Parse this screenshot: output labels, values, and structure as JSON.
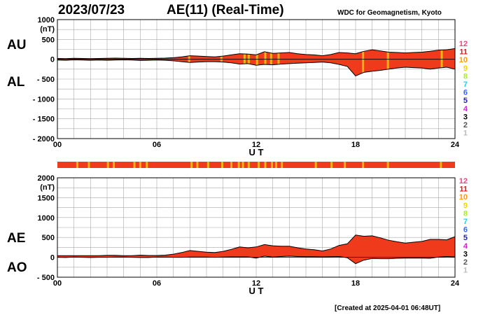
{
  "header": {
    "date": "2023/07/23",
    "title": "AE(11) (Real-Time)",
    "source": "WDC for Geomagnetism, Kyoto"
  },
  "footer": {
    "created": "[Created at 2025-04-01 06:48UT]"
  },
  "colors": {
    "fill": "#f03a1c",
    "quiet": "#f03a1c",
    "gap": "#f2b315",
    "grid": "#a8a8a8",
    "line": "#000000"
  },
  "levels": [
    {
      "label": "12",
      "color": "#ff3d7f"
    },
    {
      "label": "11",
      "color": "#ee1111"
    },
    {
      "label": "10",
      "color": "#ff9900"
    },
    {
      "label": "9",
      "color": "#f2d600"
    },
    {
      "label": "8",
      "color": "#aaee22"
    },
    {
      "label": "7",
      "color": "#22ccee"
    },
    {
      "label": "6",
      "color": "#3366ff"
    },
    {
      "label": "5",
      "color": "#2222aa"
    },
    {
      "label": "4",
      "color": "#cc22cc"
    },
    {
      "label": "3",
      "color": "#000000"
    },
    {
      "label": "2",
      "color": "#555555"
    },
    {
      "label": "1",
      "color": "#bbbbbb"
    }
  ],
  "chart_data": [
    {
      "type": "area",
      "series": [
        {
          "name": "AU"
        },
        {
          "name": "AL"
        }
      ],
      "x_unit": "UT hour",
      "xlabel": "U T",
      "ylabel": "(nT)",
      "xlim": [
        0,
        24
      ],
      "ylim": [
        -2000,
        1000
      ],
      "xticks": [
        "00",
        "06",
        "12",
        "18",
        "24"
      ],
      "yticks": [
        "1000",
        "500",
        "0",
        "- 500",
        "- 1000",
        "- 1500",
        "- 2000"
      ],
      "ytick_values": [
        1000,
        500,
        0,
        -500,
        -1000,
        -1500,
        -2000
      ],
      "grid": true,
      "x": [
        0,
        0.5,
        1,
        1.5,
        2,
        2.5,
        3,
        3.5,
        4,
        4.5,
        5,
        5.5,
        6,
        6.5,
        7,
        7.5,
        8,
        8.5,
        9,
        9.5,
        10,
        10.5,
        11,
        11.5,
        12,
        12.5,
        13,
        13.5,
        14,
        14.5,
        15,
        15.5,
        16,
        16.5,
        17,
        17.5,
        18,
        18.5,
        19,
        19.5,
        20,
        20.5,
        21,
        21.5,
        22,
        22.5,
        23,
        23.5,
        24
      ],
      "upper": [
        20,
        15,
        25,
        20,
        15,
        20,
        25,
        30,
        25,
        20,
        25,
        20,
        25,
        30,
        40,
        60,
        90,
        80,
        70,
        60,
        80,
        110,
        140,
        130,
        110,
        190,
        150,
        160,
        170,
        140,
        120,
        110,
        90,
        120,
        170,
        160,
        140,
        200,
        240,
        210,
        180,
        170,
        160,
        170,
        180,
        200,
        230,
        240,
        270
      ],
      "lower": [
        -20,
        -25,
        -15,
        -20,
        -25,
        -20,
        -25,
        -20,
        -15,
        -20,
        -30,
        -25,
        -20,
        -25,
        -40,
        -60,
        -80,
        -70,
        -60,
        -60,
        -70,
        -90,
        -120,
        -110,
        -150,
        -130,
        -140,
        -120,
        -110,
        -100,
        -90,
        -80,
        -70,
        -90,
        -130,
        -180,
        -420,
        -330,
        -300,
        -280,
        -250,
        -220,
        -200,
        -210,
        -220,
        -250,
        -220,
        -200,
        -250
      ],
      "gap_hours": [
        7.95,
        9.9,
        11.3,
        11.55,
        12.05,
        12.55,
        12.9,
        13.35,
        18.45,
        19.95,
        23.2
      ]
    },
    {
      "type": "area",
      "series": [
        {
          "name": "AE"
        },
        {
          "name": "AO"
        }
      ],
      "x_unit": "UT hour",
      "xlabel": "U T",
      "ylabel": "(nT)",
      "xlim": [
        0,
        24
      ],
      "ylim": [
        -500,
        2000
      ],
      "xticks": [
        "00",
        "06",
        "12",
        "18",
        "24"
      ],
      "yticks": [
        "2000",
        "1500",
        "1000",
        "500",
        "0",
        "- 500"
      ],
      "ytick_values": [
        2000,
        1500,
        1000,
        500,
        0,
        -500
      ],
      "grid": true,
      "x": [
        0,
        0.5,
        1,
        1.5,
        2,
        2.5,
        3,
        3.5,
        4,
        4.5,
        5,
        5.5,
        6,
        6.5,
        7,
        7.5,
        8,
        8.5,
        9,
        9.5,
        10,
        10.5,
        11,
        11.5,
        12,
        12.5,
        13,
        13.5,
        14,
        14.5,
        15,
        15.5,
        16,
        16.5,
        17,
        17.5,
        18,
        18.5,
        19,
        19.5,
        20,
        20.5,
        21,
        21.5,
        22,
        22.5,
        23,
        23.5,
        24
      ],
      "upper": [
        40,
        40,
        40,
        40,
        40,
        40,
        50,
        50,
        40,
        40,
        55,
        45,
        45,
        55,
        80,
        120,
        170,
        150,
        130,
        120,
        150,
        200,
        260,
        240,
        260,
        320,
        290,
        280,
        280,
        240,
        210,
        190,
        160,
        210,
        300,
        340,
        560,
        530,
        540,
        490,
        430,
        390,
        360,
        380,
        400,
        450,
        450,
        440,
        520
      ],
      "lower": [
        0,
        -5,
        5,
        0,
        -5,
        0,
        0,
        5,
        5,
        0,
        -5,
        -5,
        5,
        5,
        0,
        0,
        5,
        5,
        5,
        0,
        5,
        10,
        10,
        10,
        -20,
        30,
        5,
        20,
        30,
        20,
        15,
        15,
        10,
        15,
        20,
        -10,
        -160,
        -70,
        -30,
        -35,
        -35,
        -25,
        -20,
        -20,
        -20,
        -25,
        5,
        20,
        10
      ]
    }
  ],
  "event_bar": {
    "gap_hours": [
      1.2,
      1.9,
      3.05,
      3.4,
      4.65,
      5.0,
      5.4,
      8.1,
      8.45,
      9.1,
      9.95,
      10.5,
      10.95,
      11.2,
      11.55,
      12.15,
      12.55,
      12.95,
      13.2,
      13.55,
      15.6,
      16.55,
      17.35,
      18.45,
      19.95,
      23.15
    ]
  },
  "panel_labels": {
    "top_upper": "AU",
    "top_lower": "AL",
    "bottom_upper": "AE",
    "bottom_lower": "AO"
  }
}
